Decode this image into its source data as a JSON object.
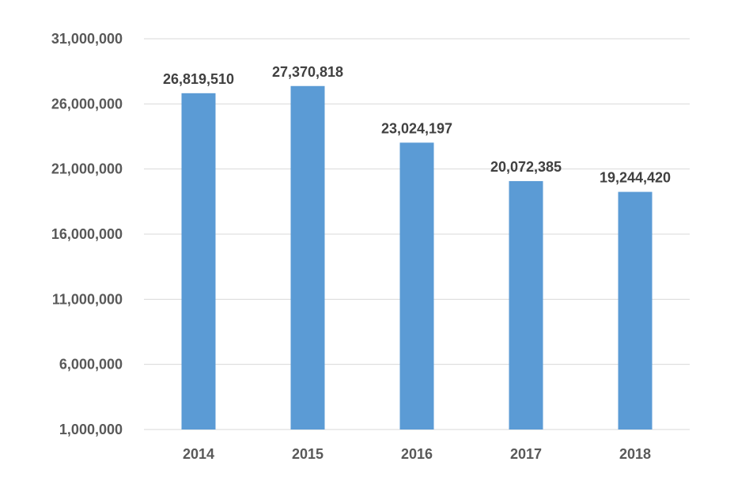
{
  "chart_data": {
    "type": "bar",
    "categories": [
      "2014",
      "2015",
      "2016",
      "2017",
      "2018"
    ],
    "values": [
      26819510,
      27370818,
      23024197,
      20072385,
      19244420
    ],
    "data_labels": [
      "26,819,510",
      "27,370,818",
      "23,024,197",
      "20,072,385",
      "19,244,420"
    ],
    "ylim": [
      1000000,
      31000000
    ],
    "yticks": [
      1000000,
      6000000,
      11000000,
      16000000,
      21000000,
      26000000,
      31000000
    ],
    "ytick_labels": [
      "1,000,000",
      "6,000,000",
      "11,000,000",
      "16,000,000",
      "21,000,000",
      "26,000,000",
      "31,000,000"
    ],
    "grid": true,
    "legend": "none",
    "colors": {
      "bar": "#5b9bd5",
      "grid": "#d9d9d9",
      "tick_text": "#595959",
      "label_text": "#404040"
    }
  }
}
